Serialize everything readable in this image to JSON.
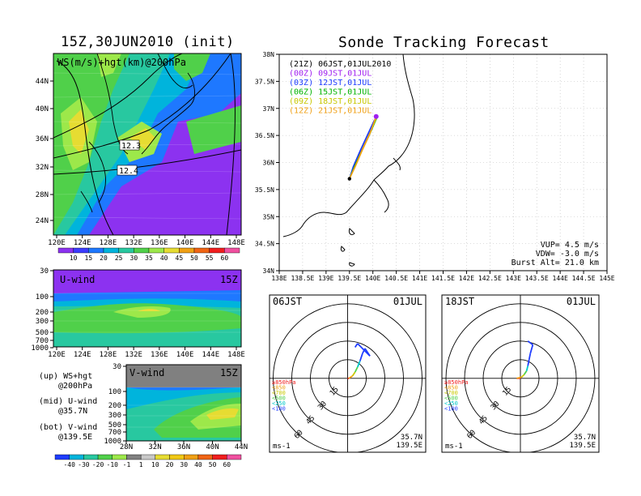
{
  "header": {
    "left_title": "15Z,30JUN2010 (init)",
    "right_title": "Sonde Tracking Forecast"
  },
  "colors": {
    "purple": "#a020f0",
    "blue": "#1e3cff",
    "cyan": "#00c8c8",
    "green": "#50d04a",
    "lightgreen": "#9de84a",
    "yellow": "#e6dc32",
    "orange": "#f0a014",
    "red": "#f01e1e",
    "pink": "#f050a0"
  },
  "chart_data": [
    {
      "id": "ws_map",
      "type": "heatmap",
      "title": "WS(m/s)+hgt(km)@200hPa",
      "x_ticks": [
        "120E",
        "124E",
        "128E",
        "132E",
        "136E",
        "140E",
        "144E",
        "148E"
      ],
      "y_ticks": [
        "24N",
        "28N",
        "32N",
        "36N",
        "40N",
        "44N"
      ],
      "annotations": [
        "12.3",
        "12.4"
      ],
      "colorbar_levels": [
        "10",
        "15",
        "20",
        "25",
        "30",
        "35",
        "40",
        "45",
        "50",
        "55",
        "60"
      ]
    },
    {
      "id": "u_wind",
      "type": "heatmap",
      "title": "U-wind",
      "time_label": "15Z",
      "x_ticks": [
        "120E",
        "124E",
        "128E",
        "132E",
        "136E",
        "140E",
        "144E",
        "148E"
      ],
      "y_ticks": [
        "30",
        "100",
        "200",
        "300",
        "500",
        "700",
        "1000"
      ]
    },
    {
      "id": "v_wind",
      "type": "heatmap",
      "title": "V-wind",
      "time_label": "15Z",
      "x_ticks": [
        "28N",
        "32N",
        "36N",
        "40N",
        "44N"
      ],
      "y_ticks": [
        "30",
        "100",
        "200",
        "300",
        "500",
        "700",
        "1000"
      ],
      "colorbar_levels": [
        "-40",
        "-30",
        "-20",
        "-10",
        "-1",
        "1",
        "10",
        "20",
        "30",
        "40",
        "50",
        "60"
      ]
    },
    {
      "id": "track_map",
      "type": "line",
      "x_ticks": [
        "138E",
        "138.5E",
        "139E",
        "139.5E",
        "140E",
        "140.5E",
        "141E",
        "141.5E",
        "142E",
        "142.5E",
        "143E",
        "143.5E",
        "144E",
        "144.5E",
        "145E"
      ],
      "y_ticks": [
        "34N",
        "34.5N",
        "35N",
        "35.5N",
        "36N",
        "36.5N",
        "37N",
        "37.5N",
        "38N"
      ],
      "xlim": [
        138,
        145
      ],
      "ylim": [
        34,
        38
      ],
      "legend": [
        {
          "label": "(21Z) 06JST,01JUL2010",
          "color": "#000000"
        },
        {
          "label": "(00Z) 09JST,01JUL",
          "color": "#a020f0"
        },
        {
          "label": "(03Z) 12JST,01JUL",
          "color": "#1e3cff"
        },
        {
          "label": "(06Z) 15JST,01JUL",
          "color": "#00b400"
        },
        {
          "label": "(09Z) 18JST,01JUL",
          "color": "#c8c800"
        },
        {
          "label": "(12Z) 21JST,01JUL",
          "color": "#f0a014"
        }
      ],
      "launch": {
        "lon": 139.5,
        "lat": 35.7
      },
      "series": [
        {
          "name": "(21Z) 06JST,01JUL2010",
          "points": [
            [
              139.5,
              35.7
            ],
            [
              139.6,
              35.9
            ],
            [
              139.75,
              36.2
            ],
            [
              139.9,
              36.5
            ],
            [
              140.05,
              36.8
            ]
          ]
        },
        {
          "name": "(00Z) 09JST,01JUL",
          "points": [
            [
              139.5,
              35.7
            ],
            [
              139.62,
              35.95
            ],
            [
              139.76,
              36.25
            ],
            [
              139.92,
              36.55
            ],
            [
              140.07,
              36.85
            ]
          ]
        },
        {
          "name": "(03Z) 12JST,01JUL",
          "points": [
            [
              139.5,
              35.7
            ],
            [
              139.58,
              35.92
            ],
            [
              139.73,
              36.22
            ],
            [
              139.88,
              36.5
            ],
            [
              140.03,
              36.78
            ]
          ]
        },
        {
          "name": "(06Z) 15JST,01JUL",
          "points": [
            [
              139.5,
              35.7
            ],
            [
              139.61,
              35.93
            ],
            [
              139.77,
              36.23
            ],
            [
              139.93,
              36.52
            ],
            [
              140.08,
              36.82
            ]
          ]
        },
        {
          "name": "(09Z) 18JST,01JUL",
          "points": [
            [
              139.5,
              35.7
            ],
            [
              139.64,
              35.96
            ],
            [
              139.79,
              36.27
            ],
            [
              139.95,
              36.57
            ],
            [
              140.09,
              36.86
            ]
          ]
        },
        {
          "name": "(12Z) 21JST,01JUL",
          "points": [
            [
              139.5,
              35.7
            ],
            [
              139.63,
              35.94
            ],
            [
              139.78,
              36.24
            ],
            [
              139.94,
              36.54
            ],
            [
              140.06,
              36.83
            ]
          ]
        }
      ],
      "info": [
        "VUP= 4.5 m/s",
        "VDW= -3.0 m/s",
        "Burst Alt= 21.0 km"
      ]
    },
    {
      "id": "hodo_06",
      "type": "line",
      "title_left": "06JST",
      "title_right": "01JUL",
      "ring_labels": [
        "15",
        "30",
        "45",
        "60"
      ],
      "legend_levels": [
        "≥850hPa",
        "<850",
        "<700",
        "<500",
        "<250",
        "<100"
      ],
      "legend_colors": [
        "#f01e1e",
        "#f0a014",
        "#c8c800",
        "#50d04a",
        "#00c8c8",
        "#1e3cff"
      ],
      "unit": "ms-1",
      "loc": [
        "35.7N",
        "139.5E"
      ],
      "x": [
        0,
        1,
        4,
        6,
        8,
        10,
        12,
        14,
        18,
        8,
        6
      ],
      "y": [
        0,
        0,
        2,
        5,
        9,
        14,
        20,
        24,
        18,
        28,
        25
      ]
    },
    {
      "id": "hodo_18",
      "type": "line",
      "title_left": "18JST",
      "title_right": "01JUL",
      "ring_labels": [
        "15",
        "30",
        "45",
        "60"
      ],
      "legend_levels": [
        "≥850hPa",
        "<850",
        "<700",
        "<500",
        "<250",
        "<100"
      ],
      "legend_colors": [
        "#f01e1e",
        "#f0a014",
        "#c8c800",
        "#50d04a",
        "#00c8c8",
        "#1e3cff"
      ],
      "unit": "ms-1",
      "loc": [
        "35.7N",
        "139.5E"
      ],
      "x": [
        0,
        -3,
        1,
        3,
        5,
        6,
        7,
        8,
        10,
        6
      ],
      "y": [
        0,
        0,
        1,
        3,
        6,
        10,
        15,
        20,
        27,
        30
      ]
    }
  ],
  "left_legend": {
    "lines": [
      [
        "(up) WS+hgt",
        "@200hPa"
      ],
      [
        "(mid) U-wind",
        "@35.7N"
      ],
      [
        "(bot) V-wind",
        "@139.5E"
      ]
    ]
  }
}
